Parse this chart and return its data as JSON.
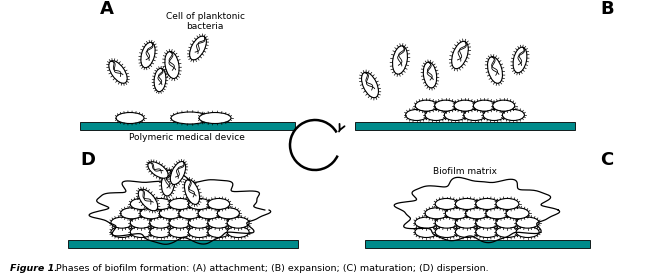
{
  "bg_color": "#ffffff",
  "teal_color": "#008B8B",
  "label_A": "A",
  "label_B": "B",
  "label_C": "C",
  "label_D": "D",
  "text_planktonic": "Cell of planktonic\nbacteria",
  "text_polymeric": "Polymeric medical device",
  "text_biofilm_matrix": "Biofilm matrix",
  "caption_bold": "Figure 1.",
  "caption_normal": " Phases of biofilm formation: (A) attachment; (B) expansion; (C) maturation; (D) dispersion.",
  "figure_width": 6.51,
  "figure_height": 2.77,
  "figure_dpi": 100
}
